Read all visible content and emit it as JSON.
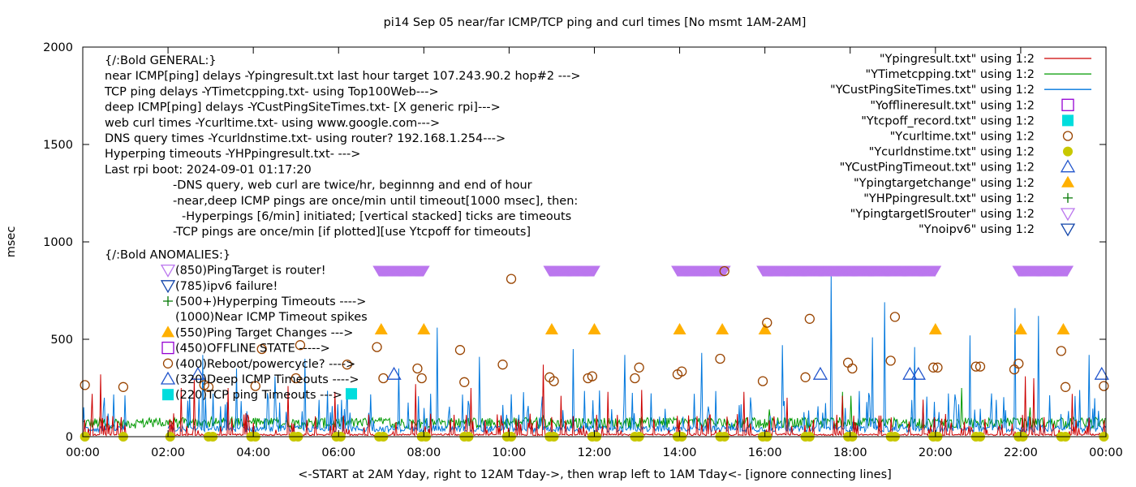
{
  "chart_data": {
    "type": "scatter",
    "title": "pi14 Sep 05  near/far ICMP/TCP ping and curl times [No msmt 1AM-2AM]",
    "xlabel": "<-START at 2AM Yday, right to 12AM Tday->, then wrap left to 1AM Tday<- [ignore connecting lines]",
    "ylabel": "msec",
    "xlim": [
      0,
      24
    ],
    "ylim": [
      0,
      2000
    ],
    "x_unit": "hour",
    "xticks": [
      "00:00",
      "02:00",
      "04:00",
      "06:00",
      "08:00",
      "10:00",
      "12:00",
      "14:00",
      "16:00",
      "18:00",
      "20:00",
      "22:00",
      "00:00"
    ],
    "yticks": [
      "0",
      "500",
      "1000",
      "1500",
      "2000"
    ],
    "grid": false,
    "legend_position": "top-right",
    "legend": [
      {
        "label": "\"Ypingresult.txt\" using 1:2",
        "marker": "line",
        "color": "#cc0000"
      },
      {
        "label": "\"YTimetcpping.txt\" using 1:2",
        "marker": "line",
        "color": "#009900"
      },
      {
        "label": "\"YCustPingSiteTimes.txt\" using 1:2",
        "marker": "line",
        "color": "#0077dd"
      },
      {
        "label": "\"Yofflineresult.txt\" using 1:2",
        "marker": "open-square",
        "color": "#9400d3"
      },
      {
        "label": "\"Ytcpoff_record.txt\" using 1:2",
        "marker": "filled-square",
        "color": "#00dddd"
      },
      {
        "label": "\"Ycurltime.txt\" using 1:2",
        "marker": "open-circle",
        "color": "#994400"
      },
      {
        "label": "\"Ycurldnstime.txt\" using 1:2",
        "marker": "filled-circle",
        "color": "#c8c800"
      },
      {
        "label": "\"YCustPingTimeout.txt\" using 1:2",
        "marker": "open-triangle",
        "color": "#2255cc"
      },
      {
        "label": "\"Ypingtargetchange\" using 1:2",
        "marker": "filled-triangle",
        "color": "#ffb000"
      },
      {
        "label": "\"YHPpingresult.txt\" using 1:2",
        "marker": "plus",
        "color": "#007700"
      },
      {
        "label": "\"YpingtargetISrouter\" using 1:2",
        "marker": "open-down-triangle",
        "color": "#bb77ee"
      },
      {
        "label": "\"Ynoipv6\" using 1:2",
        "marker": "open-down-triangle",
        "color": "#1144aa"
      }
    ],
    "annotations_general": [
      "{/:Bold GENERAL:}",
      "near ICMP[ping] delays -Ypingresult.txt last hour target 107.243.90.2 hop#2 --->",
      "TCP ping delays -YTimetcpping.txt- using Top100Web--->",
      "deep ICMP[ping] delays -YCustPingSiteTimes.txt- [X generic rpi]--->",
      "web curl times -Ycurltime.txt- using www.google.com--->",
      "DNS query times -Ycurldnstime.txt- using router? 192.168.1.254--->",
      "Hyperping timeouts -YHPpingresult.txt- --->",
      "Last rpi boot: 2024-09-01 01:17:20"
    ],
    "annotations_notes": [
      "-DNS query, web curl are twice/hr, beginnng and end of hour",
      "-near,deep ICMP pings are once/min until timeout[1000 msec], then:",
      "-Hyperpings [6/min] initiated; [vertical stacked] ticks are timeouts",
      "-TCP pings are once/min [if plotted][use Ytcpoff for timeouts]"
    ],
    "anomalies_header": "{/:Bold ANOMALIES:}",
    "anomalies": [
      {
        "marker": "open-down-triangle",
        "color": "#bb77ee",
        "text": "(850)PingTarget is router!"
      },
      {
        "marker": "open-down-triangle",
        "color": "#1144aa",
        "text": "(785)ipv6 failure!"
      },
      {
        "marker": "plus",
        "color": "#007700",
        "text": "(500+)Hyperping Timeouts ---->"
      },
      {
        "marker": "none",
        "color": "#000000",
        "text": "(1000)Near ICMP Timeout spikes"
      },
      {
        "marker": "filled-triangle",
        "color": "#ffb000",
        "text": "(550)Ping Target Changes --->"
      },
      {
        "marker": "open-square",
        "color": "#9400d3",
        "text": "(450)OFFLINE STATE ----->"
      },
      {
        "marker": "open-circle",
        "color": "#994400",
        "text": "(400)Reboot/powercycle? ---->"
      },
      {
        "marker": "open-triangle",
        "color": "#2255cc",
        "text": "(320)Deep ICMP Timeouts ---->"
      },
      {
        "marker": "filled-square",
        "color": "#00dddd",
        "text": "(220)TCP ping Timeouts --->"
      }
    ],
    "series": [
      {
        "name": "\"YpingtargetISrouter\" using 1:2",
        "marker": "open-down-triangle",
        "color": "#bb77ee",
        "segments": [
          [
            6.95,
            8.0
          ],
          [
            10.95,
            12.0
          ],
          [
            13.95,
            15.05
          ],
          [
            15.95,
            20.0
          ],
          [
            21.95,
            23.1
          ]
        ],
        "y": 850
      },
      {
        "name": "\"Ypingtargetchange\" using 1:2",
        "marker": "filled-triangle",
        "color": "#ffb000",
        "x": [
          7.0,
          8.0,
          11.0,
          12.0,
          14.0,
          15.0,
          16.0,
          20.0,
          22.0,
          23.0
        ],
        "y": 550
      },
      {
        "name": "\"Ycurltime.txt\" using 1:2",
        "marker": "open-circle",
        "color": "#994400",
        "points": [
          [
            0.05,
            265
          ],
          [
            0.95,
            255
          ],
          [
            2.85,
            265
          ],
          [
            2.95,
            255
          ],
          [
            4.05,
            260
          ],
          [
            4.2,
            450
          ],
          [
            5.0,
            300
          ],
          [
            5.1,
            470
          ],
          [
            6.2,
            370
          ],
          [
            6.9,
            460
          ],
          [
            7.05,
            300
          ],
          [
            7.85,
            350
          ],
          [
            7.95,
            300
          ],
          [
            8.85,
            445
          ],
          [
            8.95,
            280
          ],
          [
            9.85,
            370
          ],
          [
            10.05,
            810
          ],
          [
            10.95,
            305
          ],
          [
            11.05,
            285
          ],
          [
            11.85,
            300
          ],
          [
            11.95,
            310
          ],
          [
            12.95,
            300
          ],
          [
            13.05,
            355
          ],
          [
            13.95,
            320
          ],
          [
            14.05,
            335
          ],
          [
            14.95,
            400
          ],
          [
            15.05,
            850
          ],
          [
            15.95,
            285
          ],
          [
            16.05,
            585
          ],
          [
            16.95,
            305
          ],
          [
            17.05,
            605
          ],
          [
            17.95,
            380
          ],
          [
            18.05,
            350
          ],
          [
            18.95,
            390
          ],
          [
            19.05,
            615
          ],
          [
            19.95,
            355
          ],
          [
            20.05,
            355
          ],
          [
            20.95,
            360
          ],
          [
            21.05,
            360
          ],
          [
            21.85,
            345
          ],
          [
            21.95,
            375
          ],
          [
            22.95,
            440
          ],
          [
            23.05,
            255
          ],
          [
            23.95,
            260
          ]
        ]
      },
      {
        "name": "\"Ycurldnstime.txt\" using 1:2",
        "marker": "filled-circle",
        "color": "#c8c800",
        "x": [
          0.05,
          0.95,
          2.05,
          2.95,
          3.05,
          3.95,
          4.05,
          4.95,
          5.05,
          5.95,
          6.05,
          6.95,
          7.05,
          7.95,
          8.05,
          8.95,
          9.05,
          9.95,
          10.05,
          10.95,
          11.05,
          11.95,
          12.05,
          12.95,
          13.05,
          13.95,
          14.05,
          14.95,
          15.05,
          15.95,
          16.05,
          16.95,
          17.05,
          17.95,
          18.05,
          18.95,
          19.05,
          19.95,
          20.05,
          20.95,
          21.05,
          21.95,
          22.05,
          22.95,
          23.05,
          23.95
        ],
        "y": 0
      },
      {
        "name": "\"YCustPingTimeout.txt\" using 1:2",
        "marker": "open-triangle",
        "color": "#2255cc",
        "x": [
          2.7,
          7.3,
          17.3,
          19.4,
          19.6,
          23.9
        ],
        "y": 320
      },
      {
        "name": "\"Ytcpoff_record.txt\" using 1:2",
        "marker": "filled-square",
        "color": "#00dddd",
        "x": [
          6.3
        ],
        "y": 220
      },
      {
        "name": "\"YCustPingSiteTimes.txt\" using 1:2",
        "marker": "line",
        "color": "#0077dd",
        "baseline": 40,
        "typical_spike": 200,
        "spikes": [
          [
            0.5,
            200
          ],
          [
            2.8,
            420
          ],
          [
            3.6,
            350
          ],
          [
            4.5,
            310
          ],
          [
            5.2,
            400
          ],
          [
            7.4,
            350
          ],
          [
            8.3,
            560
          ],
          [
            9.3,
            410
          ],
          [
            11.5,
            450
          ],
          [
            12.7,
            420
          ],
          [
            14.5,
            430
          ],
          [
            16.4,
            470
          ],
          [
            17.55,
            830
          ],
          [
            18.5,
            510
          ],
          [
            18.8,
            690
          ],
          [
            19.5,
            460
          ],
          [
            20.8,
            520
          ],
          [
            21.85,
            660
          ],
          [
            22.4,
            620
          ],
          [
            23.6,
            420
          ]
        ]
      },
      {
        "name": "\"Ypingresult.txt\" using 1:2",
        "marker": "line",
        "color": "#cc0000",
        "baseline": 10,
        "typical_spike": 110,
        "spikes": [
          [
            0.2,
            220
          ],
          [
            0.4,
            320
          ],
          [
            2.3,
            250
          ],
          [
            2.6,
            300
          ],
          [
            3.4,
            250
          ],
          [
            4.8,
            260
          ],
          [
            5.9,
            230
          ],
          [
            7.8,
            270
          ],
          [
            9.1,
            250
          ],
          [
            10.8,
            370
          ],
          [
            11.2,
            210
          ],
          [
            12.3,
            230
          ],
          [
            13.1,
            240
          ],
          [
            15.5,
            230
          ],
          [
            16.5,
            200
          ],
          [
            17.8,
            210
          ],
          [
            19.7,
            190
          ],
          [
            22.1,
            310
          ],
          [
            22.3,
            300
          ],
          [
            23.2,
            220
          ]
        ]
      },
      {
        "name": "\"YTimetcpping.txt\" using 1:2",
        "marker": "line",
        "color": "#009900",
        "baseline": 70,
        "typical_spike": 30,
        "spikes": [
          [
            0.5,
            90
          ],
          [
            0.6,
            60
          ],
          [
            1.0,
            80
          ],
          [
            2.0,
            60
          ],
          [
            4.0,
            95
          ],
          [
            10.8,
            110
          ],
          [
            16.1,
            140
          ],
          [
            17.8,
            230
          ],
          [
            18.0,
            210
          ],
          [
            20.6,
            250
          ],
          [
            22.2,
            150
          ]
        ]
      }
    ]
  }
}
